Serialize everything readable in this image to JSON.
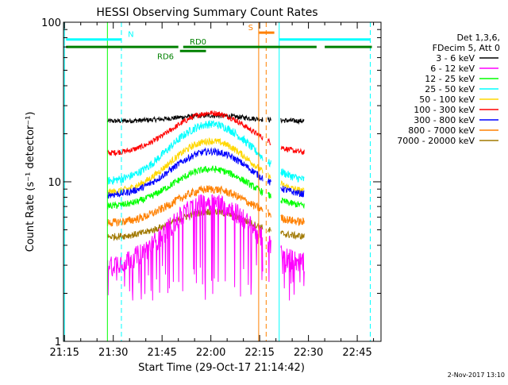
{
  "chart_data": {
    "type": "line",
    "title": "HESSI Observing Summary Count Rates",
    "xlabel": "Start Time (29-Oct-17 21:14:42)",
    "ylabel": "Count Rate (s⁻¹ detector⁻¹)",
    "x_axis": {
      "range_min": [
        1274.7,
        1372.3
      ],
      "ticks_min": [
        1275,
        1290,
        1305,
        1320,
        1335,
        1350,
        1365
      ],
      "tick_labels": [
        "21:15",
        "21:30",
        "21:45",
        "22:00",
        "22:15",
        "22:30",
        "22:45"
      ]
    },
    "y_axis": {
      "scale": "log",
      "range": [
        1,
        100
      ],
      "ticks": [
        1,
        10,
        100
      ],
      "tick_labels": [
        "1",
        "10",
        "100"
      ]
    },
    "legend": {
      "placement": "right",
      "header": [
        "Det 1,3,6,",
        "FDecim 5, Att 0"
      ],
      "entries": [
        {
          "label": "3 - 6 keV",
          "color": "#000000"
        },
        {
          "label": "6 - 12 keV",
          "color": "#ff00ff"
        },
        {
          "label": "12 - 25 keV",
          "color": "#00ff00"
        },
        {
          "label": "25 - 50 keV",
          "color": "#00ffff"
        },
        {
          "label": "50 - 100 keV",
          "color": "#ffd700"
        },
        {
          "label": "100 - 300 keV",
          "color": "#ff0000"
        },
        {
          "label": "300 - 800 keV",
          "color": "#0000ff"
        },
        {
          "label": "800 - 7000 keV",
          "color": "#ff8000"
        },
        {
          "label": "7000 - 20000 keV",
          "color": "#a07800"
        }
      ]
    },
    "segments": [
      [
        1288.3,
        1336.0
      ],
      [
        1337.5,
        1338.5
      ],
      [
        1341.5,
        1348.7
      ]
    ],
    "series": [
      {
        "name": "3 - 6 keV",
        "color": "#000000",
        "level_min": 24,
        "level_max": 26,
        "noise": 0.035
      },
      {
        "name": "6 - 12 keV",
        "color": "#ff00ff",
        "level_min": 3.0,
        "level_max": 7.5,
        "noise": 0.15
      },
      {
        "name": "12 - 25 keV",
        "color": "#00ff00",
        "level_min": 7.0,
        "level_max": 12,
        "noise": 0.05
      },
      {
        "name": "25 - 50 keV",
        "color": "#00ffff",
        "level_min": 10,
        "level_max": 23,
        "noise": 0.06
      },
      {
        "name": "50 - 100 keV",
        "color": "#ffd700",
        "level_min": 8.5,
        "level_max": 18,
        "noise": 0.05
      },
      {
        "name": "100 - 300 keV",
        "color": "#ff0000",
        "level_min": 15,
        "level_max": 27,
        "noise": 0.04
      },
      {
        "name": "300 - 800 keV",
        "color": "#0000ff",
        "level_min": 8.2,
        "level_max": 15.5,
        "noise": 0.05
      },
      {
        "name": "800 - 7000 keV",
        "color": "#ff8000",
        "level_min": 5.5,
        "level_max": 9,
        "noise": 0.06
      },
      {
        "name": "7000 - 20000 keV",
        "color": "#a07800",
        "level_min": 4.5,
        "level_max": 6.5,
        "noise": 0.05
      }
    ],
    "vertical_lines": [
      {
        "x_min": 1275.0,
        "color": "#00ffff",
        "style": "solid"
      },
      {
        "x_min": 1288.2,
        "color": "#00ff00",
        "style": "solid"
      },
      {
        "x_min": 1292.5,
        "color": "#00ffff",
        "style": "dashed"
      },
      {
        "x_min": 1334.7,
        "color": "#ff8000",
        "style": "solid"
      },
      {
        "x_min": 1337.0,
        "color": "#ff8000",
        "style": "dashed"
      },
      {
        "x_min": 1341.0,
        "color": "#00ffff",
        "style": "solid"
      },
      {
        "x_min": 1369.0,
        "color": "#00ffff",
        "style": "dashed"
      }
    ],
    "flag_bars": [
      {
        "label": "N",
        "color": "#00ffff",
        "y_value": 78,
        "segments": [
          [
            1275.5,
            1292.5
          ],
          [
            1341.0,
            1369.0
          ]
        ],
        "label_at": 1294.5
      },
      {
        "label": "RD0",
        "color": "#008000",
        "y_value": 70,
        "segments": [
          [
            1275.5,
            1310.0
          ],
          [
            1311.5,
            1352.5
          ],
          [
            1355.0,
            1369.5
          ]
        ],
        "label_at": 1313.5
      },
      {
        "label": "RD6",
        "color": "#008000",
        "y_value": 66,
        "segments": [
          [
            1310.5,
            1318.5
          ]
        ],
        "label_at": 1303.5
      },
      {
        "label": "S",
        "color": "#ff8000",
        "y_value": 86,
        "segments": [
          [
            1334.8,
            1339.5
          ]
        ],
        "label_at": 1333.0
      }
    ],
    "footer_date": "2-Nov-2017 13:10"
  }
}
